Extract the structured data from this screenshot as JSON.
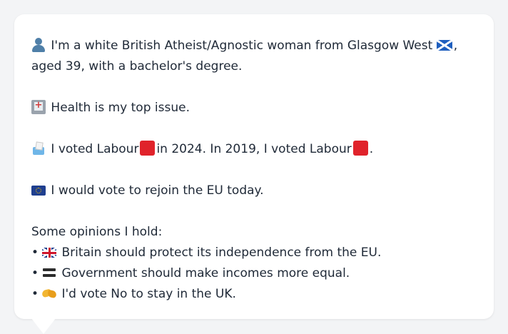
{
  "profile": {
    "intro_text": "I'm a white British Atheist/Agnostic woman from Glasgow West",
    "intro_tail": ", aged 39, with a bachelor's degree.",
    "health_text": "Health is my top issue.",
    "vote_text_1": "I voted Labour",
    "vote_text_2": "in 2024. In 2019, I voted Labour",
    "vote_text_3": ".",
    "eu_text": "I would vote to rejoin the EU today.",
    "opinions_heading": "Some opinions I hold:",
    "opinions": [
      {
        "bullet": "•",
        "icon": "uk-flag-icon",
        "text": "Britain should protect its independence from the EU."
      },
      {
        "bullet": "•",
        "icon": "equals-icon",
        "text": "Government should make incomes more equal."
      },
      {
        "bullet": "•",
        "icon": "handshake-icon",
        "text": "I'd vote No to stay in the UK."
      }
    ]
  },
  "icons": {
    "person": "person-icon",
    "scotland_flag": "scotland-flag-icon",
    "hospital": "hospital-icon",
    "ballot_box": "ballot-box-icon",
    "labour": "red-square-icon",
    "eu_flag": "eu-flag-icon"
  },
  "colors": {
    "background": "#f3f4f6",
    "card": "#ffffff",
    "text": "#1f2937",
    "labour_red": "#e0232b"
  }
}
